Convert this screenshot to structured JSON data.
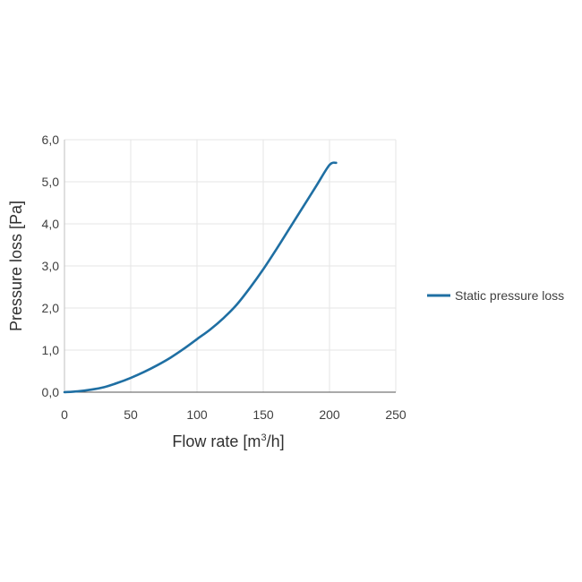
{
  "chart_data": {
    "type": "line",
    "xlabel_main": "Flow rate [m",
    "xlabel_sup": "3",
    "xlabel_end": "/h]",
    "ylabel": "Pressure loss [Pa]",
    "xlim": [
      0,
      250
    ],
    "ylim": [
      0,
      6
    ],
    "x_ticks": [
      0,
      50,
      100,
      150,
      200,
      250
    ],
    "x_tick_labels": [
      "0",
      "50",
      "100",
      "150",
      "200",
      "250"
    ],
    "y_ticks": [
      0,
      1,
      2,
      3,
      4,
      5,
      6
    ],
    "y_tick_labels": [
      "0,0",
      "1,0",
      "2,0",
      "3,0",
      "4,0",
      "5,0",
      "6,0"
    ],
    "grid": true,
    "legend_position": "right",
    "series": [
      {
        "name": "Static pressure loss",
        "color": "#1f6fa3",
        "x": [
          0,
          10,
          20,
          30,
          40,
          50,
          60,
          70,
          80,
          90,
          100,
          110,
          120,
          130,
          140,
          150,
          160,
          170,
          180,
          190,
          200,
          205
        ],
        "y": [
          0,
          0.02,
          0.06,
          0.12,
          0.22,
          0.34,
          0.48,
          0.64,
          0.82,
          1.03,
          1.26,
          1.49,
          1.76,
          2.08,
          2.48,
          2.92,
          3.4,
          3.9,
          4.4,
          4.9,
          5.4,
          5.45
        ]
      }
    ]
  }
}
